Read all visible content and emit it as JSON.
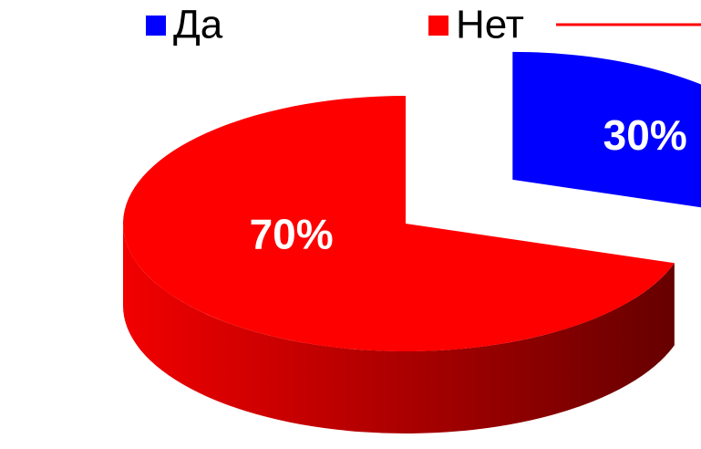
{
  "chart_data": {
    "type": "pie",
    "categories": [
      "Да",
      "Нет"
    ],
    "values": [
      30,
      70
    ],
    "value_labels": [
      "30%",
      "70%"
    ],
    "colors": [
      "#0000ff",
      "#ff0000"
    ]
  }
}
